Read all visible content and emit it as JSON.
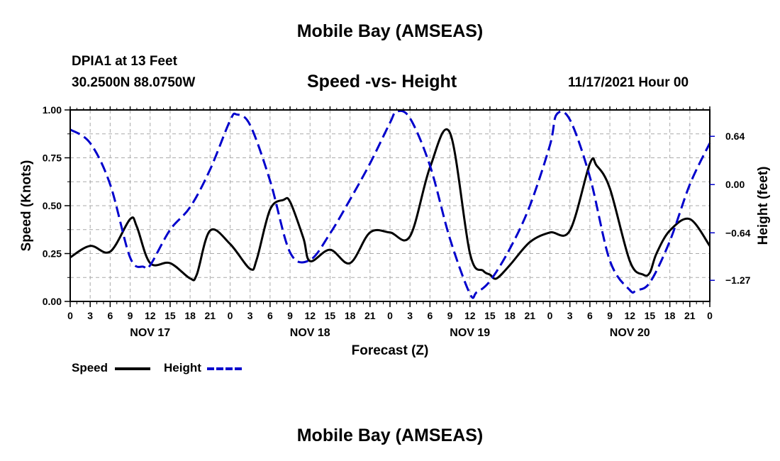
{
  "header": {
    "title": "Mobile Bay (AMSEAS)",
    "station": "DPIA1 at 13 Feet",
    "coords": "30.2500N  88.0750W",
    "subtitle": "Speed -vs- Height",
    "run": "11/17/2021 Hour 00",
    "bottom_title": "Mobile Bay (AMSEAS)"
  },
  "legend": {
    "speed_label": "Speed",
    "height_label": "Height"
  },
  "colors": {
    "speed": "#000000",
    "height": "#0000cc",
    "grid": "#aaaaaa"
  },
  "chart_data": {
    "type": "line",
    "title": "Speed -vs- Height",
    "xlabel": "Forecast (Z)",
    "ylabel": "Speed (Knots)",
    "y2label": "Height (feet)",
    "xlim": [
      0,
      96
    ],
    "ylim": [
      0,
      1.0
    ],
    "y2lim": [
      -1.55,
      0.99
    ],
    "x_ticks": [
      0,
      3,
      6,
      9,
      12,
      15,
      18,
      21,
      24,
      27,
      30,
      33,
      36,
      39,
      42,
      45,
      48,
      51,
      54,
      57,
      60,
      63,
      66,
      69,
      72,
      75,
      78,
      81,
      84,
      87,
      90,
      93,
      96
    ],
    "x_tick_labels": [
      "0",
      "3",
      "6",
      "9",
      "12",
      "15",
      "18",
      "21",
      "0",
      "3",
      "6",
      "9",
      "12",
      "15",
      "18",
      "21",
      "0",
      "3",
      "6",
      "9",
      "12",
      "15",
      "18",
      "21",
      "0",
      "3",
      "6",
      "9",
      "12",
      "15",
      "18",
      "21",
      "0"
    ],
    "day_labels": [
      {
        "x": 12,
        "label": "NOV 17"
      },
      {
        "x": 36,
        "label": "NOV 18"
      },
      {
        "x": 60,
        "label": "NOV 19"
      },
      {
        "x": 84,
        "label": "NOV 20"
      }
    ],
    "y_ticks": [
      0,
      0.25,
      0.5,
      0.75,
      1.0
    ],
    "y_tick_labels": [
      "0.00",
      "0.25",
      "0.50",
      "0.75",
      "1.00"
    ],
    "y2_ticks": [
      0.64,
      0,
      -0.64,
      -1.27
    ],
    "y2_tick_labels": [
      "0.64",
      "0.00",
      "−0.64",
      "−1.27"
    ],
    "grid": true,
    "legend_position": "bottom-left",
    "series": [
      {
        "name": "Speed",
        "axis": "left",
        "style": "solid",
        "x": [
          0,
          3,
          6,
          9,
          10,
          12,
          15,
          18,
          19,
          21,
          24,
          27,
          28,
          30,
          32,
          33,
          35,
          36,
          39,
          42,
          45,
          48,
          51,
          54,
          57,
          60,
          62,
          63,
          64,
          66,
          69,
          72,
          75,
          78,
          79,
          81,
          84,
          86,
          87,
          88,
          90,
          93,
          96
        ],
        "values": [
          0.23,
          0.29,
          0.26,
          0.43,
          0.39,
          0.2,
          0.2,
          0.12,
          0.14,
          0.37,
          0.3,
          0.17,
          0.22,
          0.48,
          0.53,
          0.52,
          0.33,
          0.21,
          0.27,
          0.2,
          0.36,
          0.36,
          0.34,
          0.7,
          0.88,
          0.25,
          0.16,
          0.14,
          0.12,
          0.19,
          0.31,
          0.36,
          0.37,
          0.72,
          0.71,
          0.59,
          0.21,
          0.14,
          0.15,
          0.25,
          0.37,
          0.43,
          0.29
        ]
      },
      {
        "name": "Height",
        "axis": "right",
        "style": "dashed",
        "x": [
          0,
          3,
          6,
          9,
          11,
          12,
          15,
          18,
          21,
          24,
          25,
          27,
          30,
          33,
          36,
          39,
          42,
          45,
          48,
          49,
          51,
          54,
          57,
          60,
          61,
          63,
          66,
          69,
          72,
          73,
          75,
          78,
          81,
          84,
          85,
          87,
          90,
          93,
          96
        ],
        "values": [
          0.73,
          0.55,
          0.0,
          -0.97,
          -1.09,
          -1.07,
          -0.6,
          -0.3,
          0.2,
          0.85,
          0.93,
          0.79,
          0.05,
          -0.9,
          -1.0,
          -0.65,
          -0.2,
          0.28,
          0.82,
          0.97,
          0.88,
          0.25,
          -0.72,
          -1.45,
          -1.43,
          -1.28,
          -0.85,
          -0.28,
          0.52,
          0.93,
          0.86,
          0.1,
          -1.01,
          -1.4,
          -1.4,
          -1.3,
          -0.75,
          0.0,
          0.55
        ]
      }
    ]
  }
}
